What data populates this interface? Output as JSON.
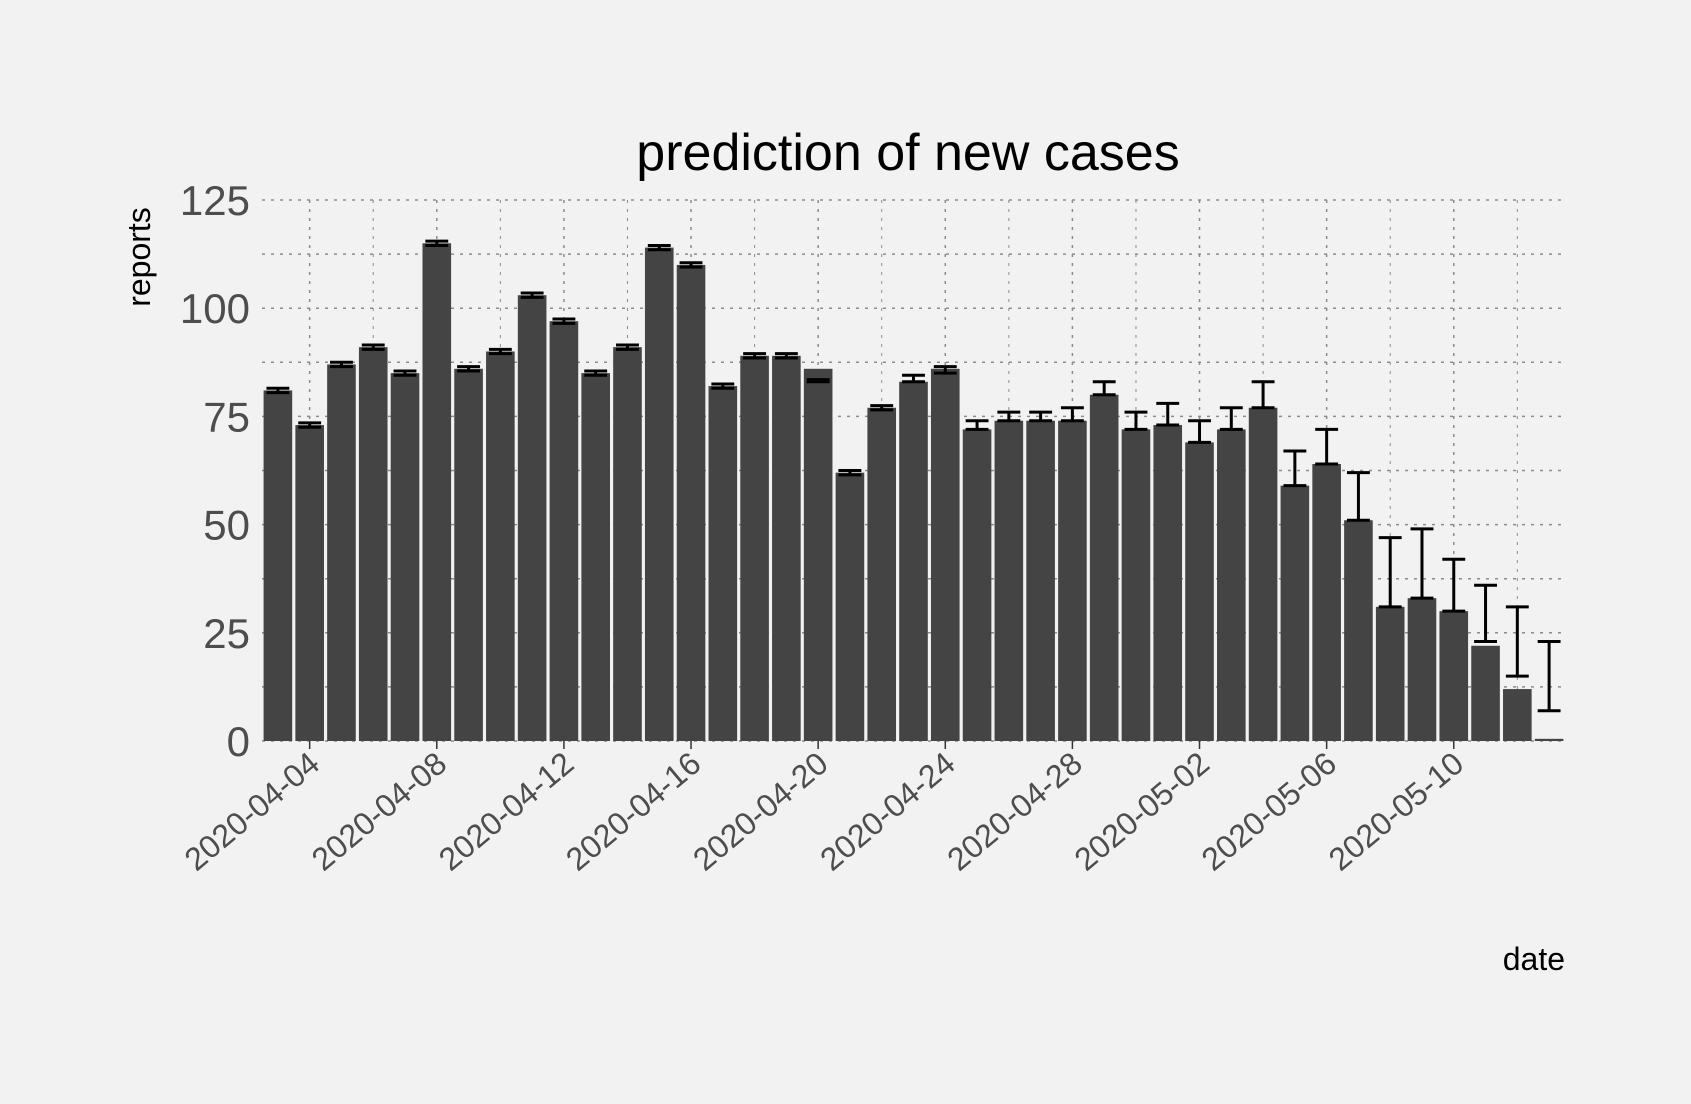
{
  "chart_data": {
    "type": "bar",
    "title": "prediction of new cases",
    "xlabel": "date",
    "ylabel": "reports",
    "ylim": [
      0,
      125
    ],
    "yticks": [
      0,
      25,
      50,
      75,
      100,
      125
    ],
    "x": [
      "2020-04-03",
      "2020-04-04",
      "2020-04-05",
      "2020-04-06",
      "2020-04-07",
      "2020-04-08",
      "2020-04-09",
      "2020-04-10",
      "2020-04-11",
      "2020-04-12",
      "2020-04-13",
      "2020-04-14",
      "2020-04-15",
      "2020-04-16",
      "2020-04-17",
      "2020-04-18",
      "2020-04-19",
      "2020-04-20",
      "2020-04-21",
      "2020-04-22",
      "2020-04-23",
      "2020-04-24",
      "2020-04-25",
      "2020-04-26",
      "2020-04-27",
      "2020-04-28",
      "2020-04-29",
      "2020-04-30",
      "2020-05-01",
      "2020-05-02",
      "2020-05-03",
      "2020-05-04",
      "2020-05-05",
      "2020-05-06",
      "2020-05-07",
      "2020-05-08",
      "2020-05-09",
      "2020-05-10",
      "2020-05-11",
      "2020-05-12",
      "2020-05-13"
    ],
    "xticks": [
      "2020-04-04",
      "2020-04-08",
      "2020-04-12",
      "2020-04-16",
      "2020-04-20",
      "2020-04-24",
      "2020-04-28",
      "2020-05-02",
      "2020-05-06",
      "2020-05-10"
    ],
    "values": [
      81,
      73,
      87,
      91,
      85,
      115,
      86,
      90,
      103,
      97,
      85,
      91,
      114,
      110,
      82,
      89,
      89,
      86,
      62,
      77,
      83,
      86,
      72,
      74,
      74,
      74,
      80,
      72,
      73,
      69,
      72,
      77,
      59,
      64,
      51,
      31,
      33,
      30,
      22,
      12,
      0.5
    ],
    "lower": [
      80.5,
      72.5,
      86.5,
      90.5,
      84.5,
      114.5,
      85.5,
      89.5,
      102.5,
      96.5,
      84.5,
      90.5,
      113.5,
      109.5,
      81.5,
      88.5,
      88.5,
      83,
      61.5,
      76.5,
      83,
      85,
      72,
      74,
      74,
      74,
      80,
      72,
      73,
      69,
      72,
      77,
      59,
      64,
      51,
      31,
      33,
      30,
      23,
      15,
      7
    ],
    "upper": [
      81.5,
      73.5,
      87.5,
      91.5,
      85.5,
      115.5,
      86.5,
      90.5,
      103.5,
      97.5,
      85.5,
      91.5,
      114.5,
      110.5,
      82.5,
      89.5,
      89.5,
      83.5,
      62.5,
      77.5,
      84.5,
      86.5,
      74,
      76,
      76,
      77,
      83,
      76,
      78,
      74,
      77,
      83,
      67,
      72,
      62,
      47,
      49,
      42,
      36,
      31,
      23
    ],
    "colors": {
      "bar": "#444444",
      "error_bar": "#000000",
      "grid": "#8c8c8c",
      "background": "#f2f2f2"
    },
    "grid": true
  }
}
